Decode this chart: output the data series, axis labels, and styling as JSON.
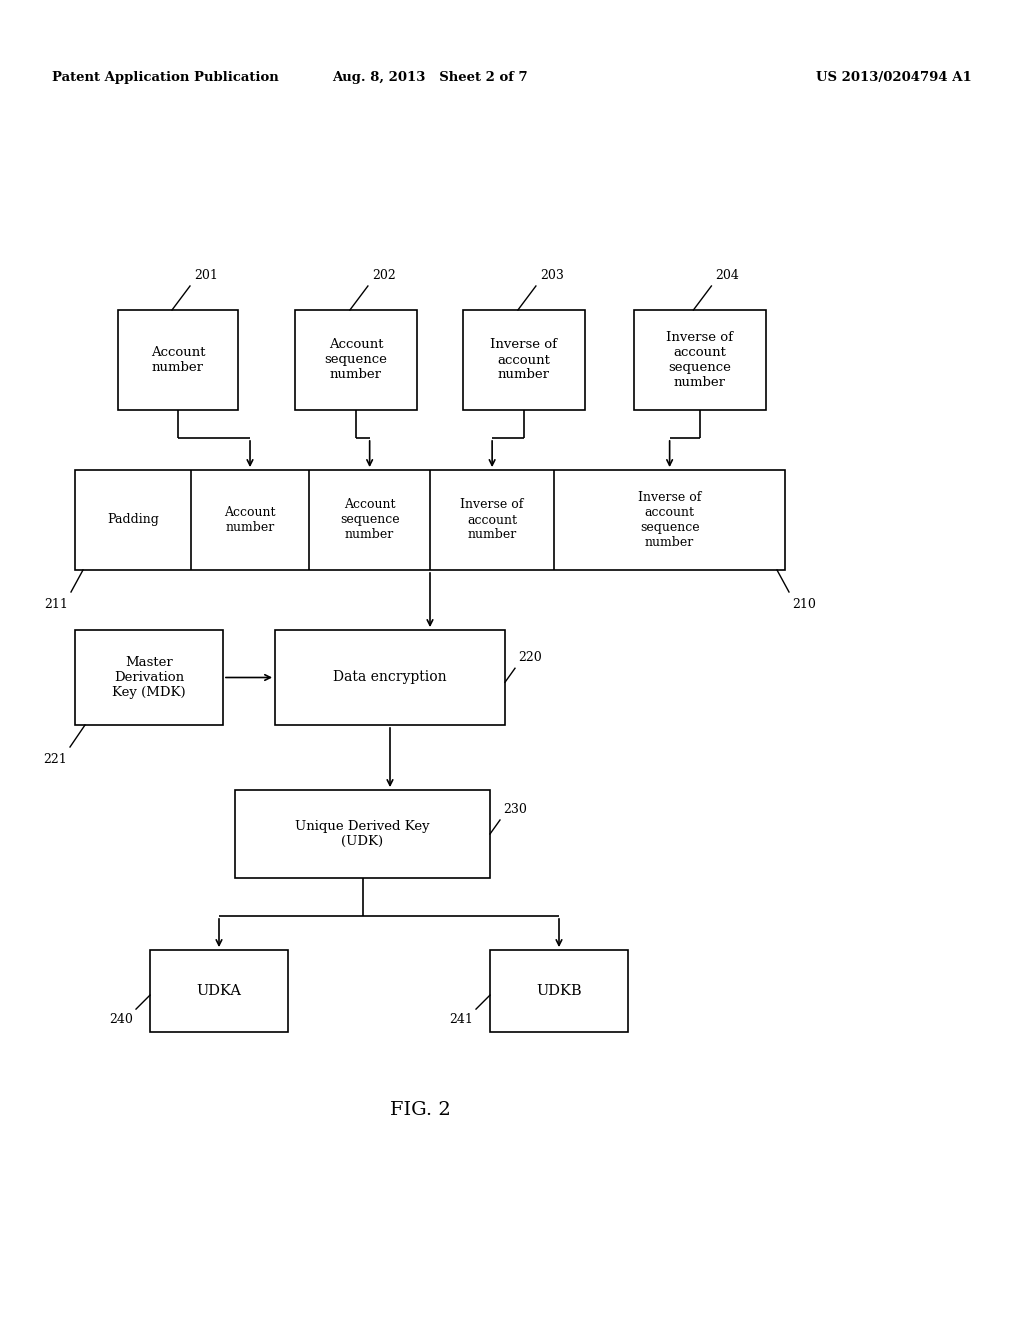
{
  "bg_color": "#ffffff",
  "header_left": "Patent Application Publication",
  "header_mid": "Aug. 8, 2013   Sheet 2 of 7",
  "header_right": "US 2013/0204794 A1",
  "fig_label": "FIG. 2"
}
